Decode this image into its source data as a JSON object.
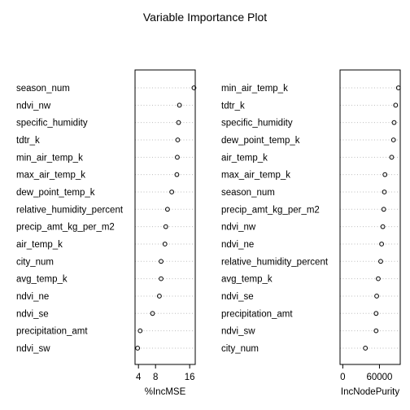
{
  "title": "Variable Importance Plot",
  "chart_data": [
    {
      "type": "scatter",
      "xlabel": "%IncMSE",
      "xticks": [
        4,
        8,
        16
      ],
      "xlim": [
        3.2,
        17.3
      ],
      "categories": [
        "season_num",
        "ndvi_nw",
        "specific_humidity",
        "tdtr_k",
        "min_air_temp_k",
        "max_air_temp_k",
        "dew_point_temp_k",
        "relative_humidity_percent",
        "precip_amt_kg_per_m2",
        "air_temp_k",
        "city_num",
        "avg_temp_k",
        "ndvi_ne",
        "ndvi_se",
        "precipitation_amt",
        "ndvi_sw"
      ],
      "values": [
        17.0,
        13.6,
        13.4,
        13.2,
        13.1,
        13.0,
        11.8,
        10.8,
        10.4,
        10.2,
        9.3,
        9.3,
        8.9,
        7.3,
        4.4,
        3.8
      ]
    },
    {
      "type": "scatter",
      "xlabel": "IncNodePurity",
      "xticks": [
        0,
        60000
      ],
      "xlim": [
        -4500,
        94000
      ],
      "categories": [
        "min_air_temp_k",
        "tdtr_k",
        "specific_humidity",
        "dew_point_temp_k",
        "air_temp_k",
        "max_air_temp_k",
        "season_num",
        "precip_amt_kg_per_m2",
        "ndvi_nw",
        "ndvi_ne",
        "relative_humidity_percent",
        "avg_temp_k",
        "ndvi_se",
        "precipitation_amt",
        "ndvi_sw",
        "city_num"
      ],
      "values": [
        91000,
        86500,
        84000,
        83000,
        80000,
        69000,
        68000,
        67000,
        65500,
        63500,
        62000,
        58000,
        55500,
        54500,
        54500,
        37000
      ]
    }
  ]
}
